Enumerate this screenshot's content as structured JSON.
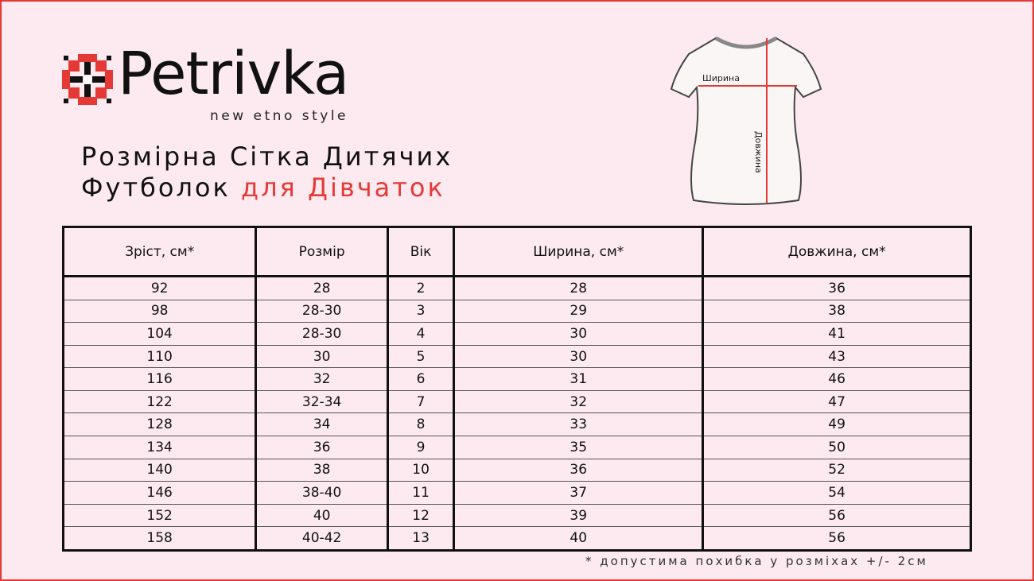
{
  "brand": {
    "name": "Petrivka",
    "tagline": "new etno style"
  },
  "title": {
    "line1": "Розмірна Сітка Дитячих",
    "line2_black": "Футболок",
    "line2_red": "для Дівчаток"
  },
  "diagram": {
    "width_label": "Ширина",
    "length_label": "Довжина"
  },
  "colors": {
    "accent": "#e53935",
    "background": "#fdeaf0"
  },
  "table": {
    "headers": [
      "Зріст, см*",
      "Розмір",
      "Вік",
      "Ширина, см*",
      "Довжина, см*"
    ],
    "rows": [
      [
        "92",
        "28",
        "2",
        "28",
        "36"
      ],
      [
        "98",
        "28-30",
        "3",
        "29",
        "38"
      ],
      [
        "104",
        "28-30",
        "4",
        "30",
        "41"
      ],
      [
        "110",
        "30",
        "5",
        "30",
        "43"
      ],
      [
        "116",
        "32",
        "6",
        "31",
        "46"
      ],
      [
        "122",
        "32-34",
        "7",
        "32",
        "47"
      ],
      [
        "128",
        "34",
        "8",
        "33",
        "49"
      ],
      [
        "134",
        "36",
        "9",
        "35",
        "50"
      ],
      [
        "140",
        "38",
        "10",
        "36",
        "52"
      ],
      [
        "146",
        "38-40",
        "11",
        "37",
        "54"
      ],
      [
        "152",
        "40",
        "12",
        "39",
        "56"
      ],
      [
        "158",
        "40-42",
        "13",
        "40",
        "56"
      ]
    ]
  },
  "footnote": "* допустима похибка у розміхах +/- 2см"
}
